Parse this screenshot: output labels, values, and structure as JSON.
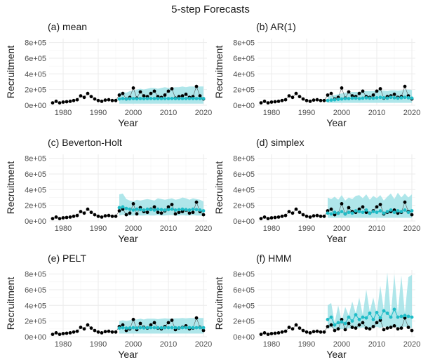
{
  "chart_data": {
    "title": "5-step Forecasts",
    "type": "line",
    "xlabel": "Year",
    "ylabel": "Recruitment",
    "xlim": [
      1976,
      2021
    ],
    "ylim": [
      0,
      850000
    ],
    "x_ticks": [
      1980,
      1990,
      2000,
      2010,
      2020
    ],
    "x_tick_labels": [
      "1980",
      "1990",
      "2000",
      "2010",
      "2020"
    ],
    "y_ticks": [
      0,
      200000,
      400000,
      600000,
      800000
    ],
    "y_tick_labels": [
      "0e+00",
      "2e+05",
      "4e+05",
      "6e+05",
      "8e+05"
    ],
    "grid": true,
    "colors": {
      "observed": "#000000",
      "forecast": "#1fbcc7",
      "band": "#a6e3e8",
      "grid": "#ebebeb"
    },
    "observed": {
      "x": [
        1977,
        1978,
        1979,
        1980,
        1981,
        1982,
        1983,
        1984,
        1985,
        1986,
        1987,
        1988,
        1989,
        1990,
        1991,
        1992,
        1993,
        1994,
        1995,
        1996,
        1997,
        1998,
        1999,
        2000,
        2001,
        2002,
        2003,
        2004,
        2005,
        2006,
        2007,
        2008,
        2009,
        2010,
        2011,
        2012,
        2013,
        2014,
        2015,
        2016,
        2017,
        2018,
        2019,
        2020
      ],
      "y": [
        30000,
        50000,
        30000,
        40000,
        45000,
        50000,
        60000,
        70000,
        120000,
        100000,
        150000,
        110000,
        80000,
        60000,
        50000,
        65000,
        70000,
        60000,
        60000,
        130000,
        150000,
        80000,
        100000,
        220000,
        90000,
        170000,
        120000,
        110000,
        150000,
        180000,
        110000,
        100000,
        130000,
        180000,
        210000,
        90000,
        110000,
        120000,
        140000,
        100000,
        110000,
        240000,
        120000,
        80000
      ]
    },
    "panels": [
      {
        "label": "(a) mean",
        "series": [
          {
            "x": [
              1996,
              1997,
              1998,
              1999,
              2000,
              2001,
              2002,
              2003,
              2004,
              2005,
              2006,
              2007,
              2008,
              2009,
              2010,
              2011,
              2012,
              2013,
              2014,
              2015,
              2016,
              2017,
              2018,
              2019,
              2020
            ],
            "y": [
              80000,
              85000,
              80000,
              82000,
              85000,
              82000,
              85000,
              83000,
              85000,
              86000,
              85000,
              85000,
              84000,
              85000,
              85000,
              86000,
              85000,
              84000,
              85000,
              85000,
              86000,
              85000,
              85000,
              85000,
              85000
            ],
            "lower": [
              20000,
              20000,
              20000,
              20000,
              20000,
              20000,
              20000,
              20000,
              20000,
              20000,
              20000,
              20000,
              20000,
              20000,
              20000,
              20000,
              20000,
              20000,
              20000,
              20000,
              20000,
              20000,
              20000,
              20000,
              20000
            ],
            "upper": [
              160000,
              170000,
              160000,
              180000,
              190000,
              200000,
              210000,
              200000,
              210000,
              220000,
              220000,
              210000,
              220000,
              230000,
              220000,
              220000,
              230000,
              230000,
              240000,
              230000,
              240000,
              240000,
              230000,
              240000,
              240000
            ]
          }
        ]
      },
      {
        "label": "(b) AR(1)",
        "series": [
          {
            "x": [
              1996,
              1997,
              1998,
              1999,
              2000,
              2001,
              2002,
              2003,
              2004,
              2005,
              2006,
              2007,
              2008,
              2009,
              2010,
              2011,
              2012,
              2013,
              2014,
              2015,
              2016,
              2017,
              2018,
              2019,
              2020
            ],
            "y": [
              60000,
              65000,
              70000,
              75000,
              80000,
              85000,
              85000,
              90000,
              90000,
              85000,
              90000,
              95000,
              90000,
              90000,
              95000,
              100000,
              95000,
              90000,
              100000,
              95000,
              90000,
              95000,
              100000,
              95000,
              90000
            ],
            "lower": [
              30000,
              30000,
              30000,
              30000,
              30000,
              30000,
              30000,
              30000,
              30000,
              30000,
              30000,
              30000,
              30000,
              30000,
              30000,
              30000,
              30000,
              30000,
              30000,
              30000,
              30000,
              30000,
              30000,
              30000,
              30000
            ],
            "upper": [
              110000,
              120000,
              130000,
              140000,
              150000,
              160000,
              160000,
              170000,
              170000,
              170000,
              175000,
              180000,
              180000,
              180000,
              185000,
              190000,
              185000,
              180000,
              190000,
              190000,
              185000,
              190000,
              200000,
              200000,
              195000
            ]
          }
        ]
      },
      {
        "label": "(c) Beverton-Holt",
        "series": [
          {
            "x": [
              1996,
              1997,
              1998,
              1999,
              2000,
              2001,
              2002,
              2003,
              2004,
              2005,
              2006,
              2007,
              2008,
              2009,
              2010,
              2011,
              2012,
              2013,
              2014,
              2015,
              2016,
              2017,
              2018,
              2019,
              2020
            ],
            "y": [
              170000,
              180000,
              160000,
              150000,
              140000,
              150000,
              145000,
              140000,
              150000,
              145000,
              140000,
              150000,
              145000,
              140000,
              145000,
              150000,
              140000,
              145000,
              150000,
              145000,
              140000,
              150000,
              145000,
              140000,
              130000
            ],
            "lower": [
              70000,
              80000,
              75000,
              70000,
              70000,
              75000,
              70000,
              70000,
              75000,
              70000,
              70000,
              75000,
              70000,
              70000,
              75000,
              75000,
              70000,
              70000,
              75000,
              70000,
              70000,
              75000,
              70000,
              70000,
              65000
            ],
            "upper": [
              340000,
              350000,
              280000,
              260000,
              250000,
              270000,
              260000,
              270000,
              280000,
              270000,
              260000,
              290000,
              280000,
              270000,
              280000,
              290000,
              270000,
              280000,
              300000,
              290000,
              270000,
              290000,
              280000,
              270000,
              250000
            ]
          }
        ]
      },
      {
        "label": "(d) simplex",
        "series": [
          {
            "x": [
              1996,
              1997,
              1998,
              1999,
              2000,
              2001,
              2002,
              2003,
              2004,
              2005,
              2006,
              2007,
              2008,
              2009,
              2010,
              2011,
              2012,
              2013,
              2014,
              2015,
              2016,
              2017,
              2018,
              2019,
              2020
            ],
            "y": [
              100000,
              90000,
              110000,
              100000,
              120000,
              90000,
              110000,
              100000,
              130000,
              120000,
              110000,
              140000,
              100000,
              120000,
              110000,
              130000,
              100000,
              120000,
              140000,
              110000,
              130000,
              120000,
              140000,
              110000,
              130000
            ],
            "lower": [
              40000,
              40000,
              40000,
              40000,
              40000,
              40000,
              40000,
              40000,
              40000,
              40000,
              40000,
              40000,
              40000,
              40000,
              40000,
              40000,
              40000,
              40000,
              40000,
              40000,
              40000,
              40000,
              40000,
              40000,
              40000
            ],
            "upper": [
              300000,
              280000,
              310000,
              270000,
              330000,
              260000,
              300000,
              280000,
              320000,
              330000,
              290000,
              340000,
              270000,
              320000,
              290000,
              330000,
              260000,
              310000,
              350000,
              280000,
              360000,
              300000,
              350000,
              300000,
              340000
            ]
          }
        ]
      },
      {
        "label": "(e) PELT",
        "series": [
          {
            "x": [
              1996,
              1997,
              1998,
              1999,
              2000,
              2001,
              2002,
              2003,
              2004,
              2005,
              2006,
              2007,
              2008,
              2009,
              2010,
              2011,
              2012,
              2013,
              2014,
              2015,
              2016,
              2017,
              2018,
              2019,
              2020
            ],
            "y": [
              110000,
              115000,
              110000,
              112000,
              115000,
              112000,
              115000,
              113000,
              115000,
              116000,
              115000,
              115000,
              114000,
              115000,
              115000,
              116000,
              115000,
              114000,
              115000,
              115000,
              116000,
              115000,
              115000,
              115000,
              115000
            ],
            "lower": [
              40000,
              40000,
              40000,
              40000,
              40000,
              40000,
              40000,
              40000,
              40000,
              40000,
              40000,
              40000,
              40000,
              40000,
              40000,
              40000,
              40000,
              40000,
              40000,
              40000,
              40000,
              40000,
              40000,
              40000,
              40000
            ],
            "upper": [
              200000,
              210000,
              200000,
              210000,
              220000,
              220000,
              230000,
              220000,
              230000,
              230000,
              230000,
              225000,
              230000,
              235000,
              230000,
              230000,
              235000,
              235000,
              240000,
              235000,
              240000,
              240000,
              235000,
              240000,
              240000
            ]
          }
        ]
      },
      {
        "label": "(f) HMM",
        "series": [
          {
            "x": [
              1996,
              1997,
              1998,
              1999,
              2000,
              2001,
              2002,
              2003,
              2004,
              2005,
              2006,
              2007,
              2008,
              2009,
              2010,
              2011,
              2012,
              2013,
              2014,
              2015,
              2016,
              2017,
              2018,
              2019,
              2020
            ],
            "y": [
              220000,
              250000,
              150000,
              180000,
              190000,
              170000,
              250000,
              200000,
              280000,
              220000,
              250000,
              240000,
              300000,
              220000,
              310000,
              240000,
              330000,
              300000,
              250000,
              350000,
              250000,
              260000,
              270000,
              260000,
              250000
            ],
            "lower": [
              100000,
              120000,
              100000,
              90000,
              100000,
              90000,
              110000,
              100000,
              120000,
              110000,
              120000,
              110000,
              120000,
              110000,
              130000,
              110000,
              130000,
              120000,
              110000,
              130000,
              120000,
              120000,
              130000,
              120000,
              110000
            ],
            "upper": [
              400000,
              430000,
              180000,
              400000,
              200000,
              380000,
              270000,
              450000,
              300000,
              500000,
              280000,
              600000,
              320000,
              500000,
              300000,
              650000,
              340000,
              820000,
              270000,
              800000,
              300000,
              780000,
              300000,
              760000,
              790000
            ]
          }
        ]
      }
    ]
  }
}
